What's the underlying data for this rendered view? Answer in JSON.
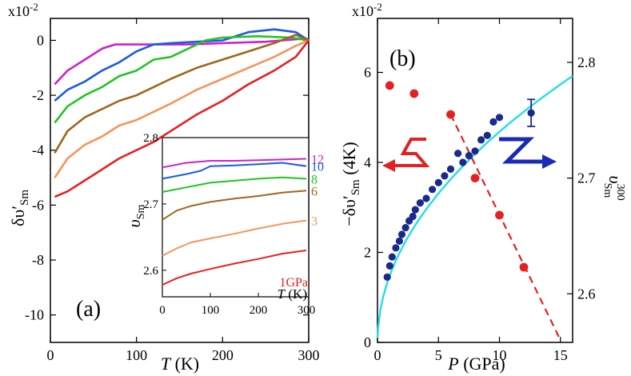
{
  "chart_data": [
    {
      "panel": "a",
      "type": "line",
      "panel_label": "(a)",
      "multiplier": "x10",
      "multiplier_exp": "-2",
      "ylabel_main": "δυ′",
      "ylabel_sub": "Sm",
      "xlabel_var": "T",
      "xlabel_unit": " (K)",
      "xlim": [
        0,
        300
      ],
      "ylim": [
        -11,
        0.8
      ],
      "xticks": [
        0,
        100,
        200,
        300
      ],
      "yticks": [
        -10,
        -8,
        -6,
        -4,
        -2,
        0
      ],
      "series": [
        {
          "name": "12",
          "color": "#cc22cc",
          "x": [
            5,
            20,
            40,
            60,
            75,
            90,
            120,
            160,
            200,
            250,
            290,
            300
          ],
          "y": [
            -1.6,
            -1.1,
            -0.7,
            -0.3,
            -0.15,
            -0.15,
            -0.15,
            -0.15,
            -0.1,
            -0.05,
            0.05,
            0.0
          ]
        },
        {
          "name": "10",
          "color": "#1a5ae6",
          "x": [
            5,
            20,
            40,
            60,
            80,
            100,
            120,
            140,
            170,
            200,
            230,
            260,
            285,
            300
          ],
          "y": [
            -2.2,
            -1.8,
            -1.5,
            -1.1,
            -0.8,
            -0.4,
            -0.15,
            -0.1,
            -0.05,
            0.0,
            0.3,
            0.4,
            0.3,
            0.0
          ]
        },
        {
          "name": "8",
          "color": "#22c422",
          "x": [
            5,
            20,
            40,
            60,
            80,
            100,
            120,
            140,
            160,
            180,
            200,
            240,
            280,
            300
          ],
          "y": [
            -3.0,
            -2.4,
            -2.0,
            -1.7,
            -1.3,
            -1.1,
            -0.7,
            -0.6,
            -0.3,
            0.0,
            0.1,
            0.15,
            0.1,
            0.0
          ]
        },
        {
          "name": "6",
          "color": "#a0661c",
          "x": [
            5,
            20,
            40,
            60,
            80,
            100,
            120,
            140,
            170,
            200,
            230,
            260,
            285,
            300
          ],
          "y": [
            -4.1,
            -3.3,
            -2.8,
            -2.5,
            -2.2,
            -2.0,
            -1.7,
            -1.4,
            -1.0,
            -0.7,
            -0.4,
            -0.1,
            0.2,
            0.0
          ]
        },
        {
          "name": "3",
          "color": "#f4955a",
          "x": [
            5,
            20,
            40,
            60,
            80,
            100,
            120,
            140,
            170,
            200,
            230,
            260,
            285,
            300
          ],
          "y": [
            -5.0,
            -4.3,
            -3.8,
            -3.5,
            -3.1,
            -2.9,
            -2.6,
            -2.3,
            -1.8,
            -1.4,
            -1.0,
            -0.6,
            -0.2,
            0.0
          ]
        },
        {
          "name": "1GPa",
          "color": "#e52020",
          "x": [
            5,
            20,
            40,
            60,
            80,
            100,
            120,
            140,
            170,
            200,
            230,
            260,
            285,
            300
          ],
          "y": [
            -5.7,
            -5.5,
            -5.1,
            -4.7,
            -4.3,
            -4.0,
            -3.7,
            -3.3,
            -2.7,
            -2.2,
            -1.6,
            -1.1,
            -0.6,
            0.0
          ]
        }
      ],
      "inset": {
        "ylabel_main": "υ",
        "ylabel_sub": "Sm",
        "xlabel_var": "T",
        "xlabel_unit": " (K)",
        "xlim": [
          0,
          300
        ],
        "ylim": [
          2.56,
          2.8
        ],
        "xticks": [
          0,
          100,
          200,
          300
        ],
        "yticks": [
          2.6,
          2.7,
          2.8
        ],
        "series": [
          {
            "name": "12",
            "label": "12",
            "color": "#cc22cc",
            "x": [
              0,
              50,
              100,
              150,
              200,
              250,
              300
            ],
            "y": [
              2.755,
              2.762,
              2.765,
              2.765,
              2.766,
              2.767,
              2.768
            ]
          },
          {
            "name": "10",
            "label": "10",
            "color": "#1a5ae6",
            "x": [
              0,
              50,
              80,
              100,
              150,
              200,
              250,
              300
            ],
            "y": [
              2.738,
              2.745,
              2.75,
              2.757,
              2.758,
              2.76,
              2.762,
              2.757
            ]
          },
          {
            "name": "8",
            "label": "8",
            "color": "#22c422",
            "x": [
              0,
              50,
              100,
              150,
              200,
              250,
              300
            ],
            "y": [
              2.718,
              2.725,
              2.732,
              2.735,
              2.738,
              2.74,
              2.738
            ]
          },
          {
            "name": "6",
            "label": "6",
            "color": "#a0661c",
            "x": [
              0,
              30,
              60,
              100,
              150,
              200,
              250,
              300
            ],
            "y": [
              2.676,
              2.69,
              2.697,
              2.703,
              2.708,
              2.712,
              2.717,
              2.72
            ]
          },
          {
            "name": "3",
            "label": "3",
            "color": "#f4955a",
            "x": [
              0,
              30,
              60,
              100,
              150,
              200,
              250,
              300
            ],
            "y": [
              2.622,
              2.633,
              2.642,
              2.648,
              2.655,
              2.663,
              2.67,
              2.675
            ]
          },
          {
            "name": "1GPa",
            "label": "1GPa",
            "color": "#e52020",
            "x": [
              0,
              30,
              60,
              100,
              150,
              200,
              250,
              300
            ],
            "y": [
              2.578,
              2.588,
              2.595,
              2.602,
              2.61,
              2.617,
              2.625,
              2.63
            ]
          }
        ]
      }
    },
    {
      "panel": "b",
      "type": "scatter",
      "panel_label": "(b)",
      "multiplier": "x10",
      "multiplier_exp": "-2",
      "ylabel_main": "−δυ′",
      "ylabel_sub": "Sm",
      "ylabel_suffix": " (4K)",
      "xlabel_var": "P",
      "xlabel_unit": " (GPa)",
      "y2label_main": "υ",
      "y2label_sub": "Sm",
      "y2label_sup": "300",
      "xlim": [
        0,
        16
      ],
      "ylim": [
        0,
        7.2
      ],
      "y2lim": [
        2.558,
        2.838
      ],
      "xticks": [
        0,
        5,
        10,
        15
      ],
      "yticks": [
        0,
        2,
        4,
        6
      ],
      "y2ticks": [
        2.6,
        2.7,
        2.8
      ],
      "series": [
        {
          "name": "-δv'Sm(4K)",
          "axis": "left",
          "color": "#1a2a8a",
          "x": [
            0.8,
            1.0,
            1.2,
            1.5,
            1.8,
            2.0,
            2.3,
            2.6,
            2.9,
            3.1,
            3.5,
            4.0,
            4.5,
            5.0,
            5.5,
            6.0,
            6.6,
            7.0,
            7.5,
            8.0,
            8.5,
            9.0,
            9.5,
            10.0,
            12.6
          ],
          "y": [
            1.45,
            1.7,
            1.9,
            2.1,
            2.25,
            2.4,
            2.55,
            2.7,
            2.8,
            2.95,
            3.1,
            3.2,
            3.4,
            3.55,
            3.7,
            3.85,
            4.2,
            4.0,
            4.15,
            4.25,
            4.5,
            4.6,
            4.9,
            5.0,
            5.1
          ],
          "error_x": 12.6,
          "error_low": 4.8,
          "error_high": 5.4
        },
        {
          "name": "υSm300",
          "axis": "right",
          "color": "#e52020",
          "x": [
            1,
            3,
            6,
            8,
            10,
            12
          ],
          "y": [
            2.78,
            2.773,
            2.755,
            2.7,
            2.668,
            2.623
          ]
        }
      ],
      "fits": [
        {
          "name": "sqrt-fit",
          "axis": "left",
          "color": "#22dde8",
          "style": "solid",
          "formula": "1.48*P^0.5",
          "x_range": [
            0.05,
            16
          ]
        },
        {
          "name": "linear-fit",
          "axis": "right",
          "color": "#e52020",
          "style": "dashed",
          "x": [
            6,
            15
          ],
          "y": [
            2.755,
            2.56
          ]
        }
      ]
    }
  ]
}
